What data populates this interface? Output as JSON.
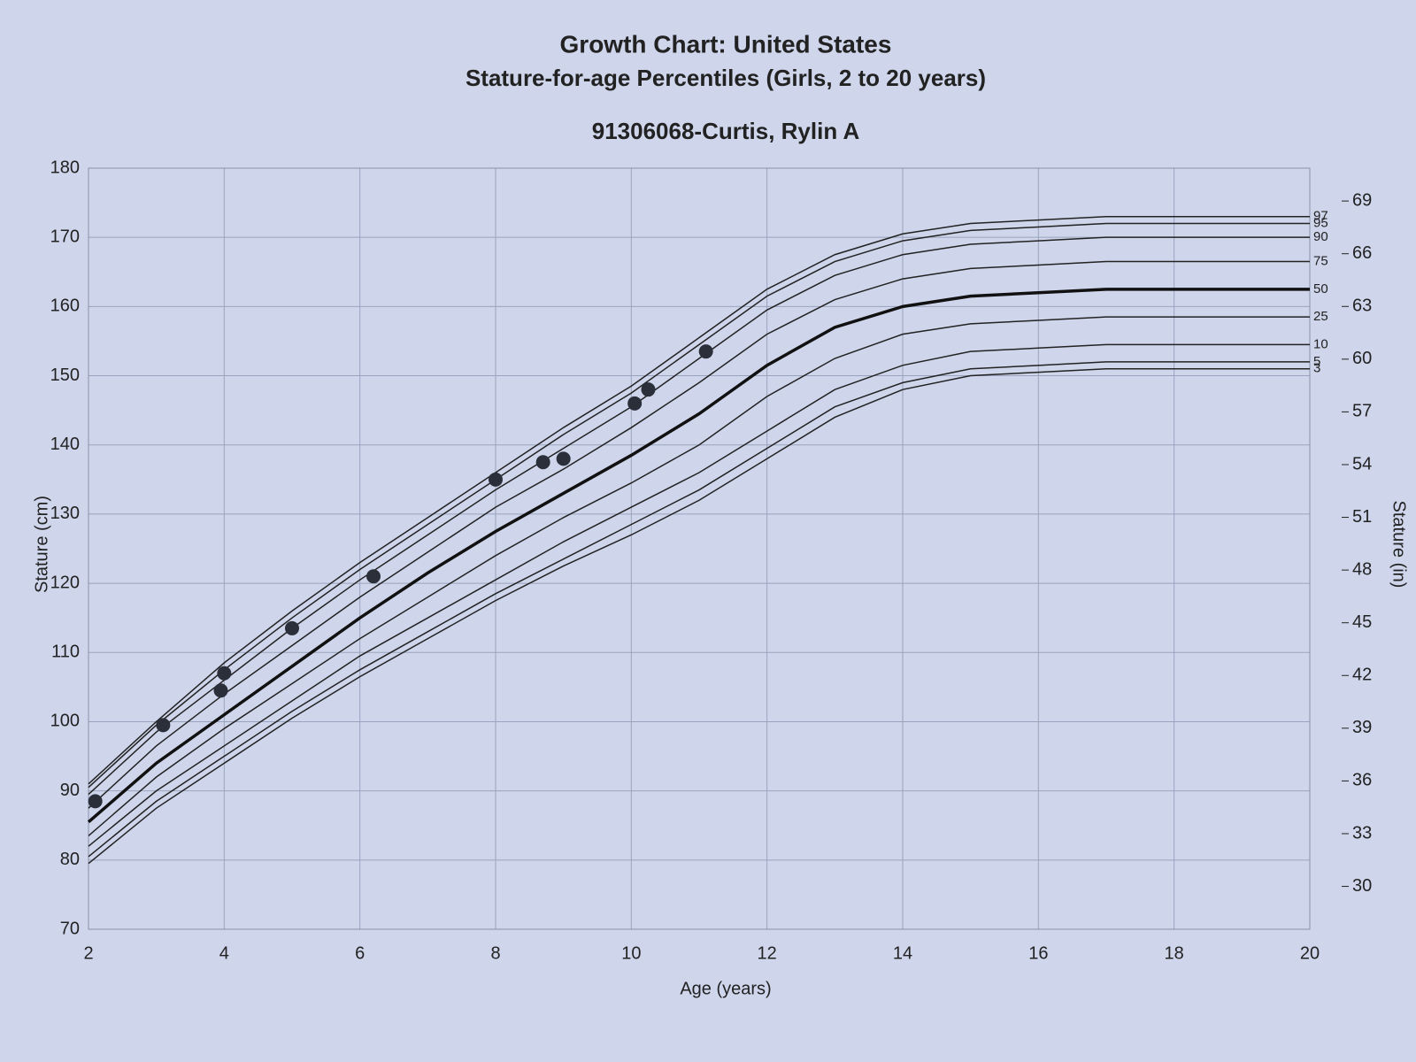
{
  "chart_data": {
    "type": "line",
    "title": "Growth Chart: United States",
    "subtitle": "Stature-for-age Percentiles (Girls, 2 to 20 years)",
    "patient": "91306068-Curtis, Rylin A",
    "x_label": "Age (years)",
    "y_label": "Stature (cm)",
    "y2_label": "Stature (in)",
    "x": [
      2,
      3,
      4,
      5,
      6,
      7,
      8,
      9,
      10,
      11,
      12,
      13,
      14,
      15,
      16,
      17,
      18,
      19,
      20
    ],
    "series": [
      {
        "name": "97",
        "color": "#222222",
        "width": 1.5,
        "values": [
          91,
          100,
          108.5,
          116,
          123,
          129.5,
          136,
          142.5,
          148.5,
          155.5,
          162.5,
          167.5,
          170.5,
          172,
          172.5,
          173,
          173,
          173,
          173
        ]
      },
      {
        "name": "95",
        "color": "#222222",
        "width": 1.5,
        "values": [
          90.5,
          99.5,
          107.5,
          115,
          122,
          128.5,
          135,
          141.5,
          147.5,
          154.5,
          161.5,
          166.5,
          169.5,
          171,
          171.5,
          172,
          172,
          172,
          172
        ]
      },
      {
        "name": "90",
        "color": "#222222",
        "width": 1.5,
        "values": [
          89.5,
          98.5,
          106,
          113.5,
          120.5,
          127,
          133.5,
          139.5,
          145.5,
          152.5,
          159.5,
          164.5,
          167.5,
          169,
          169.5,
          170,
          170,
          170,
          170
        ]
      },
      {
        "name": "75",
        "color": "#222222",
        "width": 1.5,
        "values": [
          87.5,
          96.5,
          104,
          111,
          118,
          124.5,
          131,
          136.5,
          142.5,
          149,
          156,
          161,
          164,
          165.5,
          166,
          166.5,
          166.5,
          166.5,
          166.5
        ]
      },
      {
        "name": "50",
        "color": "#111111",
        "width": 3.5,
        "values": [
          85.5,
          94,
          101,
          108,
          115,
          121.5,
          127.5,
          133,
          138.5,
          144.5,
          151.5,
          157,
          160,
          161.5,
          162,
          162.5,
          162.5,
          162.5,
          162.5
        ]
      },
      {
        "name": "25",
        "color": "#222222",
        "width": 1.5,
        "values": [
          83.5,
          92,
          99,
          105.5,
          112,
          118,
          124,
          129.5,
          134.5,
          140,
          147,
          152.5,
          156,
          157.5,
          158,
          158.5,
          158.5,
          158.5,
          158.5
        ]
      },
      {
        "name": "10",
        "color": "#222222",
        "width": 1.5,
        "values": [
          82,
          90,
          96.5,
          103,
          109.5,
          115,
          120.5,
          126,
          131,
          136,
          142,
          148,
          151.5,
          153.5,
          154,
          154.5,
          154.5,
          154.5,
          154.5
        ]
      },
      {
        "name": "5",
        "color": "#222222",
        "width": 1.5,
        "values": [
          80.5,
          88.5,
          95,
          101.5,
          107.5,
          113,
          118.5,
          123.5,
          128.5,
          133.5,
          139.5,
          145.5,
          149,
          151,
          151.5,
          152,
          152,
          152,
          152
        ]
      },
      {
        "name": "3",
        "color": "#222222",
        "width": 1.5,
        "values": [
          79.5,
          87.5,
          94,
          100.5,
          106.5,
          112,
          117.5,
          122.5,
          127,
          132,
          138,
          144,
          148,
          150,
          150.5,
          151,
          151,
          151,
          151
        ]
      }
    ],
    "points": {
      "color": "#2a2f3a",
      "x": [
        2.1,
        3.1,
        3.95,
        4,
        5,
        6.2,
        8,
        8.7,
        9,
        10.05,
        10.25,
        11.1
      ],
      "y": [
        88.5,
        99.5,
        104.5,
        107,
        113.5,
        121,
        135,
        137.5,
        138,
        146,
        148,
        153.5
      ]
    },
    "xlim": [
      2,
      20
    ],
    "xticks": [
      2,
      4,
      6,
      8,
      10,
      12,
      14,
      16,
      18,
      20
    ],
    "ylim": [
      70,
      180
    ],
    "yticks": [
      70,
      80,
      90,
      100,
      110,
      120,
      130,
      140,
      150,
      160,
      170,
      180
    ],
    "y2lim": [
      27.56,
      70.87
    ],
    "y2ticks": [
      30,
      33,
      36,
      39,
      42,
      45,
      48,
      51,
      54,
      57,
      60,
      63,
      66,
      69
    ],
    "grid": true
  }
}
